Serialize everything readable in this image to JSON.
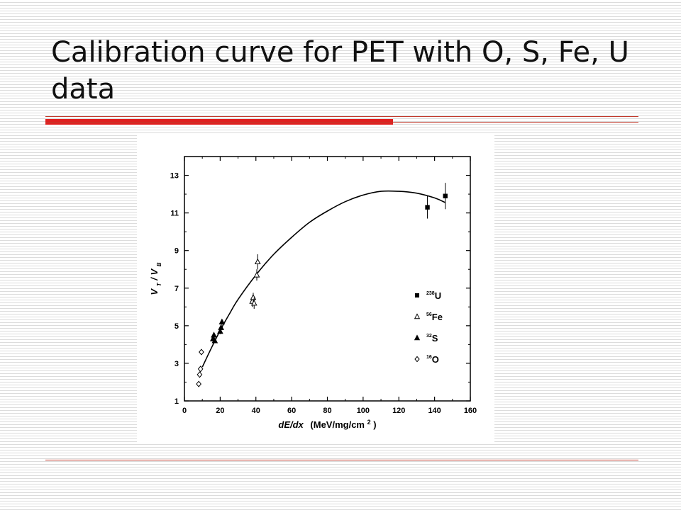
{
  "slide": {
    "title": "Calibration curve for PET with O, S, Fe, U data",
    "accent_color": "#e02020"
  },
  "chart_data": {
    "type": "scatter",
    "title": "",
    "xlabel": "dE/dx",
    "xlabel_unit": "(MeV/mg/cm",
    "xlabel_unit_sup": "2",
    "xlabel_unit_close": ")",
    "ylabel": "V",
    "ylabel_sub_t": "T",
    "ylabel_sep": " / V",
    "ylabel_sub_b": "B",
    "xlim": [
      0,
      160
    ],
    "ylim": [
      1,
      14
    ],
    "xticks": [
      0,
      20,
      40,
      60,
      80,
      100,
      120,
      140,
      160
    ],
    "yticks": [
      1,
      3,
      5,
      7,
      9,
      11,
      13
    ],
    "grid": false,
    "legend_position": "right",
    "series": [
      {
        "name": "U",
        "mass_number": "238",
        "marker": "filled-square",
        "points": [
          {
            "x": 136,
            "y": 11.3,
            "err": 0.6
          },
          {
            "x": 146,
            "y": 11.9,
            "err": 0.7
          }
        ]
      },
      {
        "name": "Fe",
        "mass_number": "56",
        "marker": "open-triangle",
        "points": [
          {
            "x": 38,
            "y": 6.3,
            "err": 0.3
          },
          {
            "x": 38.5,
            "y": 6.5,
            "err": 0.25
          },
          {
            "x": 39,
            "y": 6.2,
            "err": 0.3
          },
          {
            "x": 40.5,
            "y": 7.7,
            "err": 0.3
          },
          {
            "x": 41,
            "y": 8.4,
            "err": 0.4
          }
        ]
      },
      {
        "name": "S",
        "mass_number": "32",
        "marker": "filled-triangle",
        "points": [
          {
            "x": 16,
            "y": 4.3,
            "err": 0.1
          },
          {
            "x": 16.5,
            "y": 4.5,
            "err": 0.1
          },
          {
            "x": 17,
            "y": 4.2,
            "err": 0.1
          },
          {
            "x": 20,
            "y": 4.7,
            "err": 0.15
          },
          {
            "x": 20.5,
            "y": 4.9,
            "err": 0.15
          },
          {
            "x": 21,
            "y": 5.2,
            "err": 0.15
          }
        ]
      },
      {
        "name": "O",
        "mass_number": "16",
        "marker": "open-diamond",
        "points": [
          {
            "x": 8,
            "y": 1.9
          },
          {
            "x": 8.5,
            "y": 2.4
          },
          {
            "x": 9,
            "y": 2.7
          },
          {
            "x": 9.5,
            "y": 3.6
          }
        ]
      }
    ],
    "fit_curve": {
      "type": "line",
      "points": [
        [
          10,
          2.8
        ],
        [
          15,
          3.8
        ],
        [
          20,
          4.75
        ],
        [
          25,
          5.6
        ],
        [
          30,
          6.4
        ],
        [
          40,
          7.7
        ],
        [
          50,
          8.8
        ],
        [
          60,
          9.7
        ],
        [
          70,
          10.5
        ],
        [
          80,
          11.1
        ],
        [
          90,
          11.6
        ],
        [
          100,
          11.95
        ],
        [
          110,
          12.15
        ],
        [
          120,
          12.15
        ],
        [
          130,
          12.05
        ],
        [
          140,
          11.8
        ],
        [
          146,
          11.55
        ]
      ]
    }
  }
}
